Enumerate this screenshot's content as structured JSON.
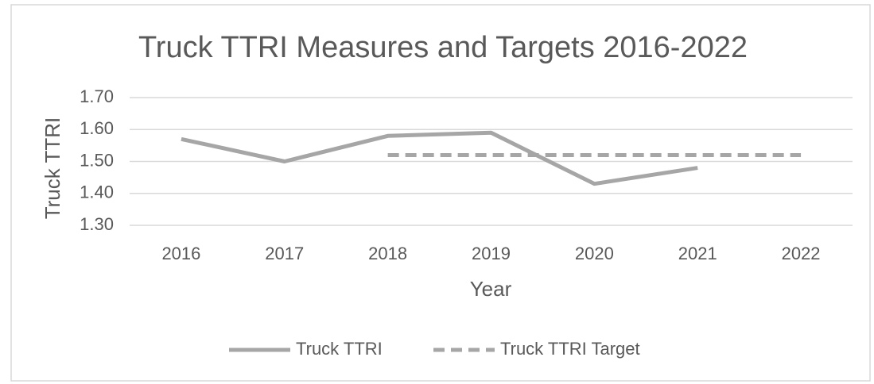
{
  "chart_data": {
    "type": "line",
    "title": "Truck TTRI Measures and Targets 2016-2022",
    "x_label": "Year",
    "y_label": "Truck TTRI",
    "categories": [
      "2016",
      "2017",
      "2018",
      "2019",
      "2020",
      "2021",
      "2022"
    ],
    "series": [
      {
        "name": "Truck TTRI",
        "color": "#a6a6a6",
        "dash": false,
        "values": [
          1.57,
          1.5,
          1.58,
          1.59,
          1.43,
          1.48,
          null
        ]
      },
      {
        "name": "Truck TTRI Target",
        "color": "#a6a6a6",
        "dash": true,
        "values": [
          null,
          null,
          1.52,
          1.52,
          1.52,
          1.52,
          1.52
        ]
      }
    ],
    "ylim": [
      1.3,
      1.7
    ],
    "yticks": [
      {
        "value": 1.3,
        "label": "1.30"
      },
      {
        "value": 1.4,
        "label": "1.40"
      },
      {
        "value": 1.5,
        "label": "1.50"
      },
      {
        "value": 1.6,
        "label": "1.60"
      },
      {
        "value": 1.7,
        "label": "1.70"
      }
    ],
    "grid": true,
    "legend": "bottom"
  }
}
